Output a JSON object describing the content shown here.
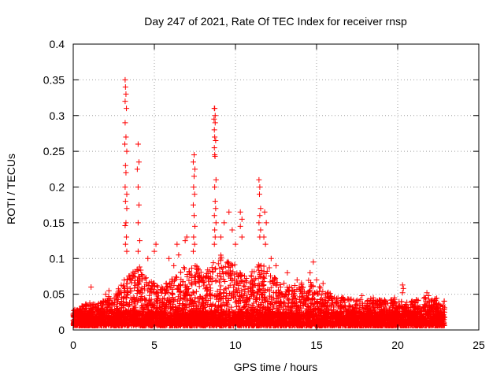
{
  "chart_data": {
    "type": "scatter",
    "title": "Day 247 of 2021, Rate Of TEC Index for receiver rnsp",
    "xlabel": "GPS time / hours",
    "ylabel": "ROTI / TECUs",
    "xlim": [
      0,
      25
    ],
    "ylim": [
      0,
      0.4
    ],
    "xticks": [
      0,
      5,
      10,
      15,
      20,
      25
    ],
    "yticks": [
      0,
      0.05,
      0.1,
      0.15,
      0.2,
      0.25,
      0.3,
      0.35,
      0.4
    ],
    "xtick_labels": [
      "0",
      "5",
      "10",
      "15",
      "20",
      "25"
    ],
    "ytick_labels": [
      "0",
      "0.05",
      "0.1",
      "0.15",
      "0.2",
      "0.25",
      "0.3",
      "0.35",
      "0.4"
    ],
    "grid": true,
    "marker": "+",
    "color": "#ff0000",
    "series": [
      {
        "name": "ROTI",
        "points": [
          [
            3.2,
            0.35
          ],
          [
            3.22,
            0.34
          ],
          [
            3.25,
            0.33
          ],
          [
            3.2,
            0.32
          ],
          [
            3.28,
            0.31
          ],
          [
            3.2,
            0.29
          ],
          [
            3.25,
            0.27
          ],
          [
            3.18,
            0.26
          ],
          [
            3.3,
            0.25
          ],
          [
            3.22,
            0.23
          ],
          [
            3.25,
            0.22
          ],
          [
            3.2,
            0.2
          ],
          [
            3.3,
            0.19
          ],
          [
            3.22,
            0.18
          ],
          [
            3.3,
            0.17
          ],
          [
            3.25,
            0.15
          ],
          [
            3.2,
            0.146
          ],
          [
            3.28,
            0.13
          ],
          [
            3.22,
            0.12
          ],
          [
            3.3,
            0.11
          ],
          [
            4.0,
            0.26
          ],
          [
            4.05,
            0.235
          ],
          [
            3.95,
            0.225
          ],
          [
            4.0,
            0.2
          ],
          [
            4.05,
            0.175
          ],
          [
            4.0,
            0.15
          ],
          [
            4.1,
            0.125
          ],
          [
            4.0,
            0.11
          ],
          [
            7.45,
            0.245
          ],
          [
            7.4,
            0.235
          ],
          [
            7.5,
            0.225
          ],
          [
            7.45,
            0.215
          ],
          [
            7.42,
            0.2
          ],
          [
            7.48,
            0.19
          ],
          [
            7.4,
            0.175
          ],
          [
            7.45,
            0.16
          ],
          [
            7.5,
            0.145
          ],
          [
            7.42,
            0.13
          ],
          [
            7.48,
            0.12
          ],
          [
            7.4,
            0.11
          ],
          [
            8.7,
            0.31
          ],
          [
            8.72,
            0.31
          ],
          [
            8.75,
            0.3
          ],
          [
            8.68,
            0.295
          ],
          [
            8.75,
            0.29
          ],
          [
            8.7,
            0.28
          ],
          [
            8.72,
            0.27
          ],
          [
            8.78,
            0.265
          ],
          [
            8.7,
            0.255
          ],
          [
            8.72,
            0.245
          ],
          [
            8.74,
            0.243
          ],
          [
            8.8,
            0.21
          ],
          [
            8.72,
            0.2
          ],
          [
            8.75,
            0.18
          ],
          [
            8.78,
            0.17
          ],
          [
            8.7,
            0.16
          ],
          [
            8.8,
            0.15
          ],
          [
            8.72,
            0.14
          ],
          [
            8.75,
            0.13
          ],
          [
            8.7,
            0.12
          ],
          [
            9.6,
            0.165
          ],
          [
            10.3,
            0.165
          ],
          [
            10.4,
            0.155
          ],
          [
            10.3,
            0.145
          ],
          [
            10.4,
            0.13
          ],
          [
            9.8,
            0.14
          ],
          [
            9.3,
            0.15
          ],
          [
            10.0,
            0.12
          ],
          [
            9.1,
            0.13
          ],
          [
            11.45,
            0.21
          ],
          [
            11.5,
            0.2
          ],
          [
            11.48,
            0.19
          ],
          [
            11.55,
            0.17
          ],
          [
            11.5,
            0.16
          ],
          [
            11.45,
            0.15
          ],
          [
            11.55,
            0.14
          ],
          [
            11.5,
            0.13
          ],
          [
            11.8,
            0.165
          ],
          [
            11.9,
            0.15
          ],
          [
            11.75,
            0.13
          ],
          [
            11.85,
            0.12
          ],
          [
            12.2,
            0.1
          ],
          [
            12.5,
            0.09
          ],
          [
            14.8,
            0.095
          ],
          [
            14.6,
            0.08
          ],
          [
            15.0,
            0.07
          ],
          [
            15.4,
            0.065
          ],
          [
            13.2,
            0.08
          ],
          [
            13.8,
            0.07
          ],
          [
            1.1,
            0.06
          ],
          [
            2.2,
            0.055
          ],
          [
            2.0,
            0.05
          ],
          [
            5.9,
            0.1
          ],
          [
            6.4,
            0.12
          ],
          [
            6.5,
            0.105
          ],
          [
            6.2,
            0.09
          ],
          [
            7.0,
            0.13
          ],
          [
            6.9,
            0.125
          ],
          [
            5.1,
            0.12
          ],
          [
            5.0,
            0.11
          ],
          [
            4.6,
            0.1
          ],
          [
            20.3,
            0.063
          ],
          [
            20.35,
            0.058
          ],
          [
            20.3,
            0.052
          ],
          [
            21.8,
            0.052
          ],
          [
            21.9,
            0.048
          ],
          [
            19.2,
            0.042
          ],
          [
            19.8,
            0.045
          ],
          [
            17.8,
            0.048
          ],
          [
            18.5,
            0.045
          ]
        ]
      }
    ],
    "band_profile": [
      [
        0,
        0.022
      ],
      [
        0.5,
        0.028
      ],
      [
        1.0,
        0.032
      ],
      [
        1.5,
        0.03
      ],
      [
        2.0,
        0.04
      ],
      [
        2.5,
        0.045
      ],
      [
        3.0,
        0.06
      ],
      [
        3.5,
        0.075
      ],
      [
        4.0,
        0.085
      ],
      [
        4.5,
        0.07
      ],
      [
        5.0,
        0.06
      ],
      [
        5.5,
        0.055
      ],
      [
        6.0,
        0.065
      ],
      [
        6.5,
        0.075
      ],
      [
        7.0,
        0.085
      ],
      [
        7.5,
        0.09
      ],
      [
        8.0,
        0.07
      ],
      [
        8.5,
        0.085
      ],
      [
        9.0,
        0.1
      ],
      [
        9.5,
        0.095
      ],
      [
        10.0,
        0.085
      ],
      [
        10.5,
        0.07
      ],
      [
        11.0,
        0.075
      ],
      [
        11.5,
        0.09
      ],
      [
        12.0,
        0.085
      ],
      [
        12.5,
        0.065
      ],
      [
        13.0,
        0.06
      ],
      [
        13.5,
        0.055
      ],
      [
        14.0,
        0.06
      ],
      [
        14.5,
        0.065
      ],
      [
        15.0,
        0.06
      ],
      [
        15.5,
        0.05
      ],
      [
        16.0,
        0.045
      ],
      [
        16.5,
        0.04
      ],
      [
        17.0,
        0.04
      ],
      [
        17.5,
        0.038
      ],
      [
        18.0,
        0.04
      ],
      [
        18.5,
        0.038
      ],
      [
        19.0,
        0.036
      ],
      [
        19.5,
        0.036
      ],
      [
        20.0,
        0.038
      ],
      [
        20.5,
        0.035
      ],
      [
        21.0,
        0.035
      ],
      [
        21.5,
        0.04
      ],
      [
        22.0,
        0.04
      ],
      [
        22.5,
        0.038
      ],
      [
        22.9,
        0.035
      ]
    ],
    "x_range_observed": [
      0.0,
      22.9
    ]
  }
}
